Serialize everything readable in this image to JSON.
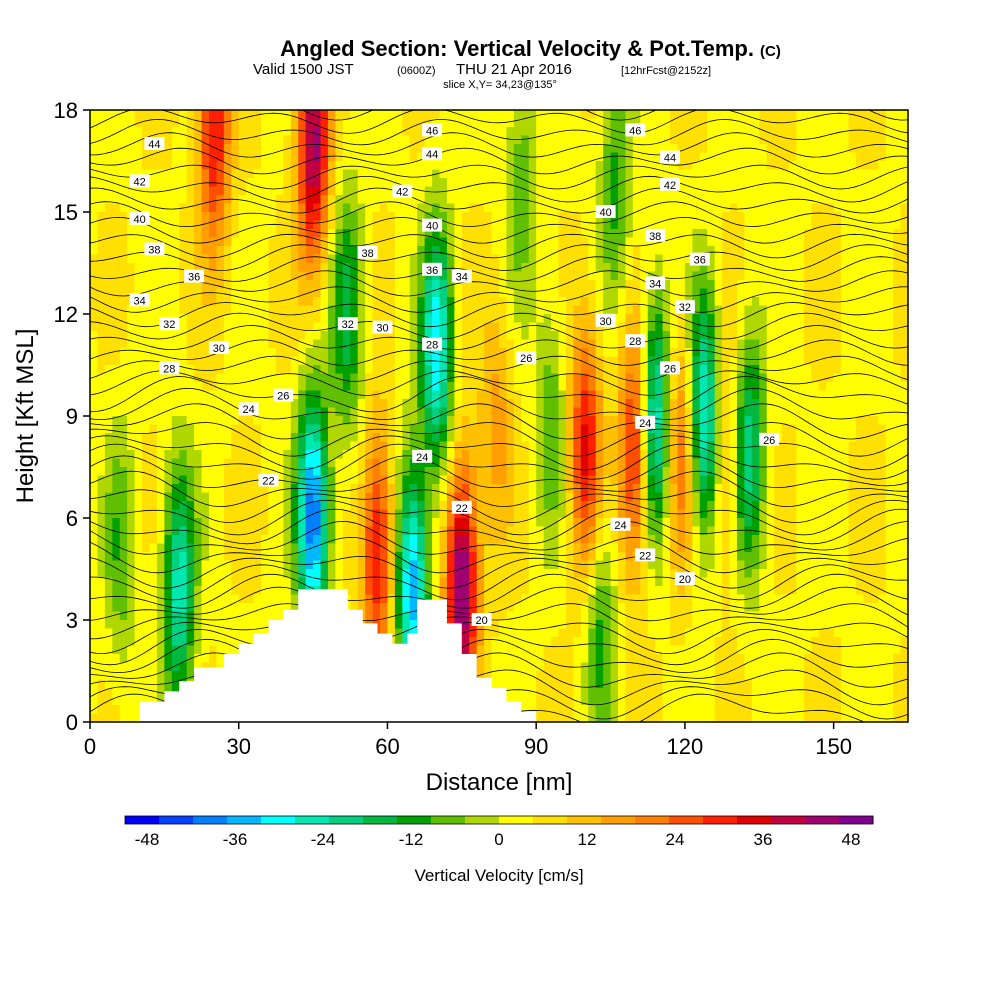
{
  "chart_data": {
    "type": "heatmap",
    "title": "Angled Section: Vertical Velocity & Pot.Temp.",
    "title_units": "(C)",
    "subtitle": {
      "prefix": "Valid 1500 JST",
      "utc": "(0600Z)",
      "date": "THU 21 Apr 2016",
      "forecast": "[12hrFcst@2152z]"
    },
    "slice_label": "slice X,Y= 34,23@135°",
    "xlabel": "Distance [nm]",
    "ylabel": "Height [Kft MSL]",
    "xlim": [
      0,
      165
    ],
    "ylim": [
      0,
      18
    ],
    "x_ticks": [
      0,
      30,
      60,
      90,
      120,
      150
    ],
    "y_ticks": [
      0,
      3,
      6,
      9,
      12,
      15,
      18
    ],
    "colorbar": {
      "label": "Vertical Velocity [cm/s]",
      "ticks": [
        -48,
        -36,
        -24,
        -12,
        0,
        12,
        24,
        36,
        48
      ],
      "range": [
        -51,
        51
      ],
      "colors": [
        "#0000ff",
        "#0040ff",
        "#0080ff",
        "#00b8ff",
        "#00ffff",
        "#00e8b0",
        "#00d080",
        "#00b840",
        "#00a000",
        "#60c000",
        "#b0d800",
        "#ffff00",
        "#ffe000",
        "#ffc000",
        "#ffa000",
        "#ff8000",
        "#ff5000",
        "#ff2000",
        "#e00000",
        "#c00040",
        "#a00070",
        "#800090"
      ]
    },
    "velocity_centers": [
      {
        "x": 18,
        "y": 4.0,
        "value": -30
      },
      {
        "x": 25,
        "y": 17.5,
        "value": 30
      },
      {
        "x": 45,
        "y": 17,
        "value": 40
      },
      {
        "x": 45,
        "y": 6,
        "value": -45
      },
      {
        "x": 52,
        "y": 12,
        "value": -20
      },
      {
        "x": 58,
        "y": 5,
        "value": 30
      },
      {
        "x": 65,
        "y": 4,
        "value": -40
      },
      {
        "x": 70,
        "y": 11,
        "value": -35
      },
      {
        "x": 75,
        "y": 4,
        "value": 45
      },
      {
        "x": 82,
        "y": 9,
        "value": 12
      },
      {
        "x": 87,
        "y": 16,
        "value": -12
      },
      {
        "x": 93,
        "y": 9,
        "value": -12
      },
      {
        "x": 100,
        "y": 8,
        "value": 30
      },
      {
        "x": 103,
        "y": 3,
        "value": -15
      },
      {
        "x": 106,
        "y": 16,
        "value": -15
      },
      {
        "x": 110,
        "y": 8,
        "value": 30
      },
      {
        "x": 114,
        "y": 9,
        "value": -35
      },
      {
        "x": 119,
        "y": 8,
        "value": 20
      },
      {
        "x": 124,
        "y": 9,
        "value": -35
      },
      {
        "x": 128,
        "y": 8,
        "value": 12
      },
      {
        "x": 133,
        "y": 8,
        "value": -25
      },
      {
        "x": 6,
        "y": 5,
        "value": -12
      }
    ],
    "terrain": [
      [
        10,
        0.6
      ],
      [
        15,
        0.6
      ],
      [
        15,
        0.9
      ],
      [
        18,
        0.9
      ],
      [
        18,
        1.2
      ],
      [
        21,
        1.2
      ],
      [
        21,
        1.6
      ],
      [
        27,
        1.6
      ],
      [
        27,
        2.0
      ],
      [
        30,
        2.0
      ],
      [
        30,
        2.3
      ],
      [
        33,
        2.3
      ],
      [
        33,
        2.6
      ],
      [
        36,
        2.6
      ],
      [
        36,
        3.0
      ],
      [
        39,
        3.0
      ],
      [
        39,
        3.3
      ],
      [
        42,
        3.3
      ],
      [
        42,
        3.9
      ],
      [
        52,
        3.9
      ],
      [
        52,
        3.3
      ],
      [
        55,
        3.3
      ],
      [
        55,
        2.9
      ],
      [
        58,
        2.9
      ],
      [
        58,
        2.6
      ],
      [
        61,
        2.6
      ],
      [
        61,
        2.3
      ],
      [
        64,
        2.3
      ],
      [
        64,
        2.6
      ],
      [
        66,
        2.6
      ],
      [
        66,
        3.6
      ],
      [
        72,
        3.6
      ],
      [
        72,
        2.9
      ],
      [
        75,
        2.9
      ],
      [
        75,
        2.0
      ],
      [
        78,
        2.0
      ],
      [
        78,
        1.3
      ],
      [
        81,
        1.3
      ],
      [
        81,
        1.0
      ],
      [
        84,
        1.0
      ],
      [
        84,
        0.6
      ],
      [
        87,
        0.6
      ],
      [
        87,
        0.3
      ],
      [
        90,
        0.3
      ]
    ],
    "isotherm_labels": [
      {
        "text": "44",
        "x": 13,
        "y": 17.0
      },
      {
        "text": "42",
        "x": 10,
        "y": 15.9
      },
      {
        "text": "40",
        "x": 10,
        "y": 14.8
      },
      {
        "text": "38",
        "x": 13,
        "y": 13.9
      },
      {
        "text": "36",
        "x": 21,
        "y": 13.1
      },
      {
        "text": "34",
        "x": 10,
        "y": 12.4
      },
      {
        "text": "32",
        "x": 16,
        "y": 11.7
      },
      {
        "text": "30",
        "x": 26,
        "y": 11.0
      },
      {
        "text": "28",
        "x": 16,
        "y": 10.4
      },
      {
        "text": "26",
        "x": 39,
        "y": 9.6
      },
      {
        "text": "24",
        "x": 32,
        "y": 9.2
      },
      {
        "text": "22",
        "x": 36,
        "y": 7.1
      },
      {
        "text": "38",
        "x": 56,
        "y": 13.8
      },
      {
        "text": "32",
        "x": 52,
        "y": 11.7
      },
      {
        "text": "30",
        "x": 59,
        "y": 11.6
      },
      {
        "text": "46",
        "x": 69,
        "y": 17.4
      },
      {
        "text": "44",
        "x": 69,
        "y": 16.7
      },
      {
        "text": "42",
        "x": 63,
        "y": 15.6
      },
      {
        "text": "40",
        "x": 69,
        "y": 14.6
      },
      {
        "text": "36",
        "x": 69,
        "y": 13.3
      },
      {
        "text": "34",
        "x": 75,
        "y": 13.1
      },
      {
        "text": "28",
        "x": 69,
        "y": 11.1
      },
      {
        "text": "24",
        "x": 67,
        "y": 7.8
      },
      {
        "text": "22",
        "x": 75,
        "y": 6.3
      },
      {
        "text": "20",
        "x": 79,
        "y": 3.0
      },
      {
        "text": "26",
        "x": 88,
        "y": 10.7
      },
      {
        "text": "46",
        "x": 110,
        "y": 17.4
      },
      {
        "text": "44",
        "x": 117,
        "y": 16.6
      },
      {
        "text": "42",
        "x": 117,
        "y": 15.8
      },
      {
        "text": "40",
        "x": 104,
        "y": 15.0
      },
      {
        "text": "38",
        "x": 114,
        "y": 14.3
      },
      {
        "text": "36",
        "x": 123,
        "y": 13.6
      },
      {
        "text": "34",
        "x": 114,
        "y": 12.9
      },
      {
        "text": "32",
        "x": 120,
        "y": 12.2
      },
      {
        "text": "30",
        "x": 104,
        "y": 11.8
      },
      {
        "text": "28",
        "x": 110,
        "y": 11.2
      },
      {
        "text": "26",
        "x": 117,
        "y": 10.4
      },
      {
        "text": "24",
        "x": 112,
        "y": 8.8
      },
      {
        "text": "26",
        "x": 137,
        "y": 8.3
      },
      {
        "text": "24",
        "x": 107,
        "y": 5.8
      },
      {
        "text": "22",
        "x": 112,
        "y": 4.9
      },
      {
        "text": "20",
        "x": 120,
        "y": 4.2
      }
    ]
  }
}
